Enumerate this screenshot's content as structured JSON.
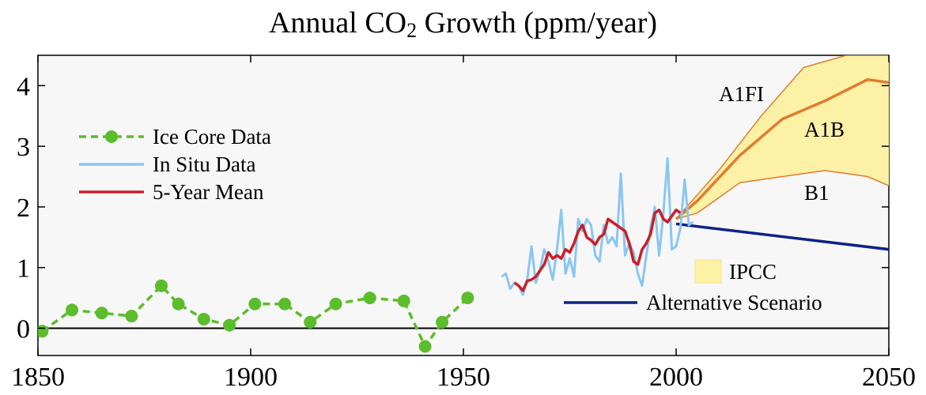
{
  "chart_data": {
    "type": "line",
    "title_pre": "Annual CO",
    "title_sub": "2",
    "title_post": " Growth (ppm/year)",
    "xlim": [
      1850,
      2050
    ],
    "ylim": [
      -0.45,
      4.5
    ],
    "x_ticks": [
      "1850",
      "1900",
      "1950",
      "2000",
      "2050"
    ],
    "y_ticks": [
      "0",
      "1",
      "2",
      "3",
      "4"
    ],
    "grid": false,
    "colors": {
      "ice_core": "#5bbd2b",
      "in_situ": "#8ac6f2",
      "five_year": "#c8202a",
      "ipcc_fill": "#fdf1a6",
      "ipcc_edge": "#e07b30",
      "a1b": "#e07b30",
      "alternative": "#0d2384",
      "zero_line": "#000000",
      "plot_bg": "#f7f7f7"
    },
    "legend": {
      "placement": "left",
      "items": [
        {
          "key": "ice_core",
          "label": "Ice Core Data"
        },
        {
          "key": "in_situ",
          "label": "In Situ Data"
        },
        {
          "key": "five_year",
          "label": "5-Year Mean"
        }
      ]
    },
    "legend2": {
      "placement": "bottom-right",
      "items": [
        {
          "key": "ipcc",
          "label": "IPCC"
        },
        {
          "key": "alternative",
          "label": "Alternative Scenario"
        }
      ]
    },
    "annotations": [
      "A1FI",
      "A1B",
      "B1"
    ],
    "series": {
      "ice_core": {
        "x": [
          1851,
          1858,
          1865,
          1872,
          1879,
          1883,
          1889,
          1895,
          1901,
          1908,
          1914,
          1920,
          1928,
          1936,
          1941,
          1945,
          1951
        ],
        "y": [
          -0.05,
          0.3,
          0.25,
          0.2,
          0.7,
          0.4,
          0.15,
          0.05,
          0.4,
          0.4,
          0.1,
          0.4,
          0.5,
          0.45,
          -0.3,
          0.1,
          0.5
        ]
      },
      "in_situ": {
        "x": [
          1959,
          1960,
          1961,
          1962,
          1963,
          1964,
          1965,
          1966,
          1967,
          1968,
          1969,
          1970,
          1971,
          1972,
          1973,
          1974,
          1975,
          1976,
          1977,
          1978,
          1979,
          1980,
          1981,
          1982,
          1983,
          1984,
          1985,
          1986,
          1987,
          1988,
          1989,
          1990,
          1991,
          1992,
          1993,
          1994,
          1995,
          1996,
          1997,
          1998,
          1999,
          2000,
          2001,
          2002,
          2003,
          2004
        ],
        "y": [
          0.85,
          0.9,
          0.65,
          0.75,
          0.7,
          0.55,
          0.8,
          1.35,
          0.75,
          0.95,
          1.3,
          1.1,
          0.8,
          1.3,
          1.95,
          0.9,
          1.15,
          0.85,
          1.8,
          1.6,
          1.8,
          1.7,
          1.2,
          1.1,
          1.7,
          1.4,
          1.5,
          1.35,
          2.55,
          1.2,
          1.4,
          1.25,
          0.9,
          0.7,
          1.2,
          1.65,
          2.0,
          1.2,
          1.9,
          2.8,
          1.3,
          1.35,
          1.65,
          2.45,
          1.7,
          1.75
        ]
      },
      "five_year": {
        "x": [
          1962,
          1963,
          1964,
          1965,
          1966,
          1967,
          1968,
          1969,
          1970,
          1971,
          1972,
          1973,
          1974,
          1975,
          1976,
          1977,
          1978,
          1979,
          1980,
          1981,
          1982,
          1983,
          1984,
          1985,
          1986,
          1987,
          1988,
          1989,
          1990,
          1991,
          1992,
          1993,
          1994,
          1995,
          1996,
          1997,
          1998,
          1999,
          2000,
          2001
        ],
        "y": [
          0.75,
          0.7,
          0.62,
          0.78,
          0.8,
          0.85,
          0.95,
          1.05,
          1.25,
          1.15,
          1.2,
          1.15,
          1.3,
          1.25,
          1.4,
          1.6,
          1.7,
          1.5,
          1.45,
          1.38,
          1.5,
          1.55,
          1.8,
          1.75,
          1.7,
          1.65,
          1.6,
          1.4,
          1.1,
          1.05,
          1.3,
          1.4,
          1.55,
          1.9,
          1.95,
          1.8,
          1.75,
          1.85,
          1.95,
          1.9
        ]
      },
      "ipcc_upper": {
        "x": [
          2000,
          2010,
          2020,
          2030,
          2040,
          2050
        ],
        "y": [
          1.8,
          2.6,
          3.5,
          4.3,
          4.5,
          4.5
        ]
      },
      "ipcc_lower": {
        "x": [
          2000,
          2005,
          2015,
          2025,
          2035,
          2045,
          2050
        ],
        "y": [
          1.8,
          1.9,
          2.4,
          2.5,
          2.6,
          2.5,
          2.35
        ]
      },
      "a1b": {
        "x": [
          2000,
          2005,
          2015,
          2025,
          2035,
          2045,
          2050
        ],
        "y": [
          1.8,
          2.1,
          2.85,
          3.45,
          3.75,
          4.1,
          4.05
        ]
      },
      "alternative": {
        "x": [
          2000,
          2050
        ],
        "y": [
          1.72,
          1.3
        ]
      }
    }
  }
}
